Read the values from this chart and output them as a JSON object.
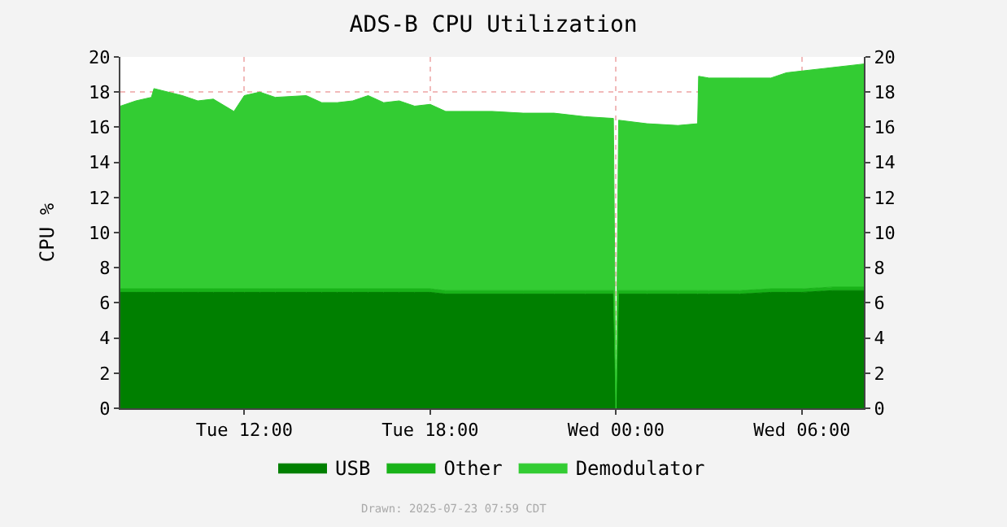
{
  "chart_data": {
    "type": "area",
    "title": "ADS-B CPU Utilization",
    "ylabel": "CPU %",
    "stacked": true,
    "x": [
      "2025-07-22T08:00",
      "2025-07-22T08:30",
      "2025-07-22T09:00",
      "2025-07-22T09:05",
      "2025-07-22T10:00",
      "2025-07-22T10:30",
      "2025-07-22T11:00",
      "2025-07-22T11:40",
      "2025-07-22T12:00",
      "2025-07-22T12:30",
      "2025-07-22T13:00",
      "2025-07-22T14:00",
      "2025-07-22T14:30",
      "2025-07-22T15:00",
      "2025-07-22T15:30",
      "2025-07-22T16:00",
      "2025-07-22T16:30",
      "2025-07-22T17:00",
      "2025-07-22T17:30",
      "2025-07-22T18:00",
      "2025-07-22T18:30",
      "2025-07-22T19:00",
      "2025-07-22T20:00",
      "2025-07-22T21:00",
      "2025-07-22T22:00",
      "2025-07-22T23:00",
      "2025-07-22T23:55",
      "2025-07-23T00:00",
      "2025-07-23T00:05",
      "2025-07-23T01:00",
      "2025-07-23T02:00",
      "2025-07-23T02:38",
      "2025-07-23T02:40",
      "2025-07-23T03:00",
      "2025-07-23T04:00",
      "2025-07-23T05:00",
      "2025-07-23T05:30",
      "2025-07-23T06:00",
      "2025-07-23T07:00",
      "2025-07-23T08:00"
    ],
    "series": [
      {
        "name": "USB",
        "color": "#007f00",
        "values": [
          6.6,
          6.6,
          6.6,
          6.6,
          6.6,
          6.6,
          6.6,
          6.6,
          6.6,
          6.6,
          6.6,
          6.6,
          6.6,
          6.6,
          6.6,
          6.6,
          6.6,
          6.6,
          6.6,
          6.6,
          6.5,
          6.5,
          6.5,
          6.5,
          6.5,
          6.5,
          6.5,
          null,
          6.5,
          6.5,
          6.5,
          6.5,
          6.5,
          6.5,
          6.5,
          6.6,
          6.6,
          6.6,
          6.7,
          6.7
        ]
      },
      {
        "name": "Other",
        "color": "#19b319",
        "values": [
          0.2,
          0.2,
          0.2,
          0.2,
          0.2,
          0.2,
          0.2,
          0.2,
          0.2,
          0.2,
          0.2,
          0.2,
          0.2,
          0.2,
          0.2,
          0.2,
          0.2,
          0.2,
          0.2,
          0.2,
          0.2,
          0.2,
          0.2,
          0.2,
          0.2,
          0.2,
          0.2,
          null,
          0.2,
          0.2,
          0.2,
          0.2,
          0.2,
          0.2,
          0.2,
          0.2,
          0.2,
          0.2,
          0.2,
          0.2
        ]
      },
      {
        "name": "Demodulator",
        "color": "#33cc33",
        "values": [
          10.4,
          10.7,
          10.9,
          11.4,
          11.0,
          10.7,
          10.8,
          10.1,
          11.0,
          11.2,
          10.9,
          11.0,
          10.6,
          10.6,
          10.7,
          11.0,
          10.6,
          10.7,
          10.4,
          10.5,
          10.2,
          10.2,
          10.2,
          10.1,
          10.1,
          9.9,
          9.8,
          null,
          9.7,
          9.5,
          9.4,
          9.5,
          12.2,
          12.1,
          12.1,
          12.0,
          12.3,
          12.4,
          12.5,
          12.7
        ]
      }
    ],
    "xlim": [
      "2025-07-22T08:00",
      "2025-07-23T08:00"
    ],
    "xticks": [
      {
        "value": "2025-07-22T12:00",
        "label": "Tue 12:00"
      },
      {
        "value": "2025-07-22T18:00",
        "label": "Tue 18:00"
      },
      {
        "value": "2025-07-23T00:00",
        "label": "Wed 00:00"
      },
      {
        "value": "2025-07-23T06:00",
        "label": "Wed 06:00"
      }
    ],
    "ylim": [
      0,
      20
    ],
    "yticks": [
      0,
      2,
      4,
      6,
      8,
      10,
      12,
      14,
      16,
      18,
      20
    ],
    "y2lim": [
      0,
      20
    ],
    "y2ticks": [
      0,
      2,
      4,
      6,
      8,
      10,
      12,
      14,
      16,
      18,
      20
    ],
    "grid": true,
    "legend": "bottom",
    "annotations": [
      "Drawn: 2025-07-23 07:59 CDT"
    ]
  }
}
